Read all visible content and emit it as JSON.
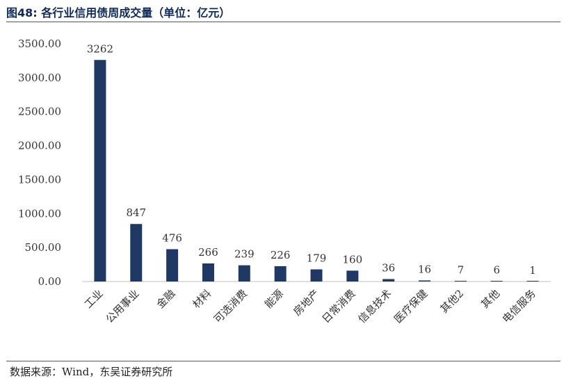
{
  "header": {
    "title": "图48: 各行业信用债周成交量（单位：亿元）"
  },
  "footer": {
    "source": "数据来源：Wind，东吴证券研究所"
  },
  "chart_data": {
    "type": "bar",
    "title": "图48: 各行业信用债周成交量（单位：亿元）",
    "xlabel": "",
    "ylabel": "",
    "unit": "亿元",
    "categories": [
      "工业",
      "公用事业",
      "金融",
      "材料",
      "可选消费",
      "能源",
      "房地产",
      "日常消费",
      "信息技术",
      "医疗保健",
      "其他2",
      "其他",
      "电信服务"
    ],
    "values": [
      3262,
      847,
      476,
      266,
      239,
      226,
      179,
      160,
      36,
      16,
      7,
      6,
      1
    ],
    "ylim": [
      0,
      3500
    ],
    "yticks": [
      "0.00",
      "500.00",
      "1000.00",
      "1500.00",
      "2000.00",
      "2500.00",
      "3000.00",
      "3500.00"
    ],
    "ytick_values": [
      0,
      500,
      1000,
      1500,
      2000,
      2500,
      3000,
      3500
    ],
    "grid": false,
    "bar_color": "#1f3864"
  }
}
